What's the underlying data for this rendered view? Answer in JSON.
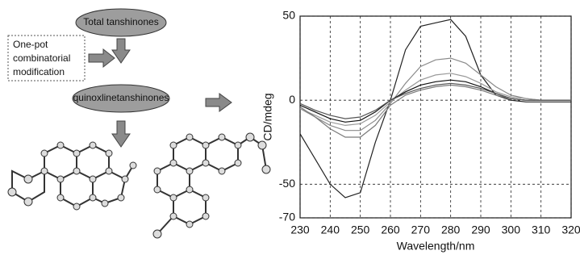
{
  "diagram": {
    "nodes": [
      {
        "label": "Total tanshinones"
      },
      {
        "label_lines": [
          "One-pot",
          "combinatorial",
          "modification"
        ]
      },
      {
        "label": "quinoxlinetanshinones"
      }
    ]
  },
  "chart_data": {
    "type": "line",
    "x_label": "Wavelength/nm",
    "y_label": "CD/mdeg",
    "x": [
      230,
      235,
      240,
      245,
      250,
      255,
      260,
      265,
      270,
      275,
      280,
      285,
      290,
      295,
      300,
      305,
      310,
      315,
      320
    ],
    "series": [
      {
        "color": "#222222",
        "values": [
          -20,
          -35,
          -50,
          -58,
          -55,
          -25,
          0,
          30,
          44,
          46,
          48,
          38,
          15,
          3,
          0,
          -1,
          -1,
          -1,
          -1
        ]
      },
      {
        "color": "#8a8a8a",
        "values": [
          -5,
          -10,
          -15,
          -18,
          -18,
          -12,
          -2,
          10,
          20,
          24,
          25,
          22,
          15,
          8,
          3,
          1,
          0,
          0,
          0
        ]
      },
      {
        "color": "#9a9a9a",
        "values": [
          -5,
          -9,
          -13,
          -15,
          -14,
          -9,
          -1,
          6,
          12,
          15,
          16,
          14,
          10,
          5,
          2,
          1,
          0,
          0,
          0
        ]
      },
      {
        "color": "#111111",
        "values": [
          -3,
          -7,
          -11,
          -13,
          -12,
          -7,
          0,
          5,
          9,
          11,
          12,
          11,
          8,
          4,
          1,
          0,
          0,
          0,
          0
        ]
      },
      {
        "color": "#7a7a7a",
        "values": [
          -4,
          -10,
          -17,
          -22,
          -22,
          -15,
          -3,
          3,
          6,
          8,
          9,
          8,
          6,
          3,
          1,
          0,
          0,
          0,
          0
        ]
      },
      {
        "color": "#555555",
        "values": [
          -2,
          -6,
          -9,
          -11,
          -10,
          -6,
          0,
          4,
          7,
          9,
          10,
          9,
          7,
          4,
          1,
          0,
          0,
          0,
          0
        ]
      }
    ],
    "xlim": [
      230,
      320
    ],
    "xticks": [
      230,
      240,
      250,
      260,
      270,
      280,
      290,
      300,
      310,
      320
    ],
    "ylim": [
      -70,
      50
    ],
    "yticks": [
      -70,
      -50,
      0,
      50
    ],
    "grid": true
  }
}
